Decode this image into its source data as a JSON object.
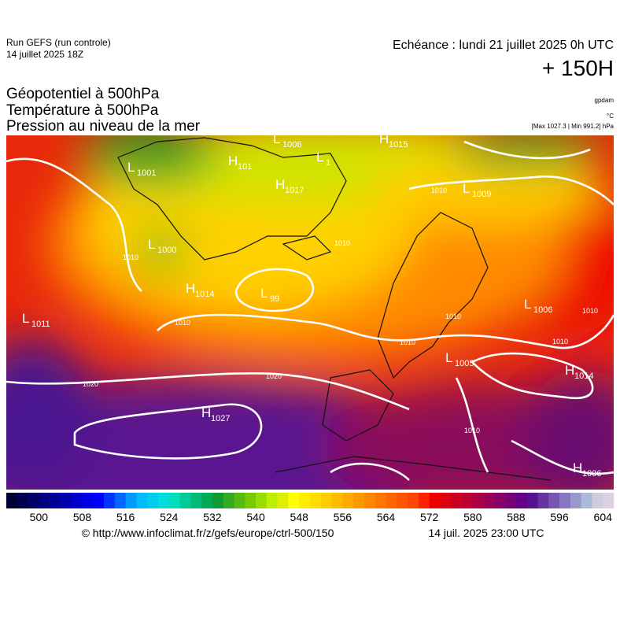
{
  "header": {
    "run": "Run GEFS (run controle)",
    "run_date": "14 juillet 2025 18Z",
    "valid": "Echéance : lundi 21 juillet 2025 0h UTC",
    "lead": "+ 150H",
    "fields": [
      "Géopotentiel à 500hPa",
      "Température à 500hPa",
      "Pression au niveau de la mer"
    ],
    "units": [
      "gpdam",
      "°C",
      "[Max 1027.3 | Min 991.2] hPa"
    ]
  },
  "map": {
    "centers": [
      {
        "kind": "H",
        "value": "1015"
      },
      {
        "kind": "L",
        "value": "1006"
      },
      {
        "kind": "H",
        "value": "101"
      },
      {
        "kind": "L",
        "value": "1001"
      },
      {
        "kind": "L",
        "value": "1"
      },
      {
        "kind": "H",
        "value": "1017"
      },
      {
        "kind": "L",
        "value": "1009"
      },
      {
        "kind": "L",
        "value": "1000"
      },
      {
        "kind": "H",
        "value": "1014"
      },
      {
        "kind": "L",
        "value": "99"
      },
      {
        "kind": "L",
        "value": "1011"
      },
      {
        "kind": "L",
        "value": "1006"
      },
      {
        "kind": "L",
        "value": "1005"
      },
      {
        "kind": "H",
        "value": "1014"
      },
      {
        "kind": "H",
        "value": "1027"
      },
      {
        "kind": "H",
        "value": "1006"
      }
    ],
    "isobar_labels": [
      "1010",
      "1010",
      "1010",
      "1010",
      "1010",
      "1010",
      "1010",
      "1020",
      "1020",
      "1010",
      "1010"
    ]
  },
  "colorbar": {
    "range": [
      494,
      606
    ],
    "ticks": [
      500,
      508,
      516,
      524,
      532,
      540,
      548,
      556,
      564,
      572,
      580,
      588,
      596,
      604
    ],
    "colors": [
      "#000033",
      "#00004d",
      "#000066",
      "#000080",
      "#000099",
      "#0000b3",
      "#0000cc",
      "#0000e6",
      "#0000ff",
      "#0033ff",
      "#0066ff",
      "#0099ff",
      "#00bbff",
      "#00ccee",
      "#00dddd",
      "#00ddbb",
      "#00cc99",
      "#00bb77",
      "#00aa55",
      "#119933",
      "#33aa22",
      "#55bb11",
      "#77cc00",
      "#99dd00",
      "#bbee00",
      "#ddee00",
      "#ffff00",
      "#ffee00",
      "#ffdd00",
      "#ffcc00",
      "#ffbb00",
      "#ffaa00",
      "#ff9900",
      "#ff8800",
      "#ff7700",
      "#ff6600",
      "#ff5500",
      "#ff4400",
      "#ff2200",
      "#ee0000",
      "#dd0011",
      "#cc0022",
      "#bb0033",
      "#aa0044",
      "#990055",
      "#880066",
      "#770077",
      "#660088",
      "#55118f",
      "#6633a0",
      "#7755b0",
      "#8877c0",
      "#9999cc",
      "#aabbd8",
      "#ccccdd",
      "#ddd0e6"
    ]
  },
  "footer": {
    "source": "© http://www.infoclimat.fr/z/gefs/europe/ctrl-500/150",
    "generated": "14 juil. 2025 23:00 UTC"
  }
}
